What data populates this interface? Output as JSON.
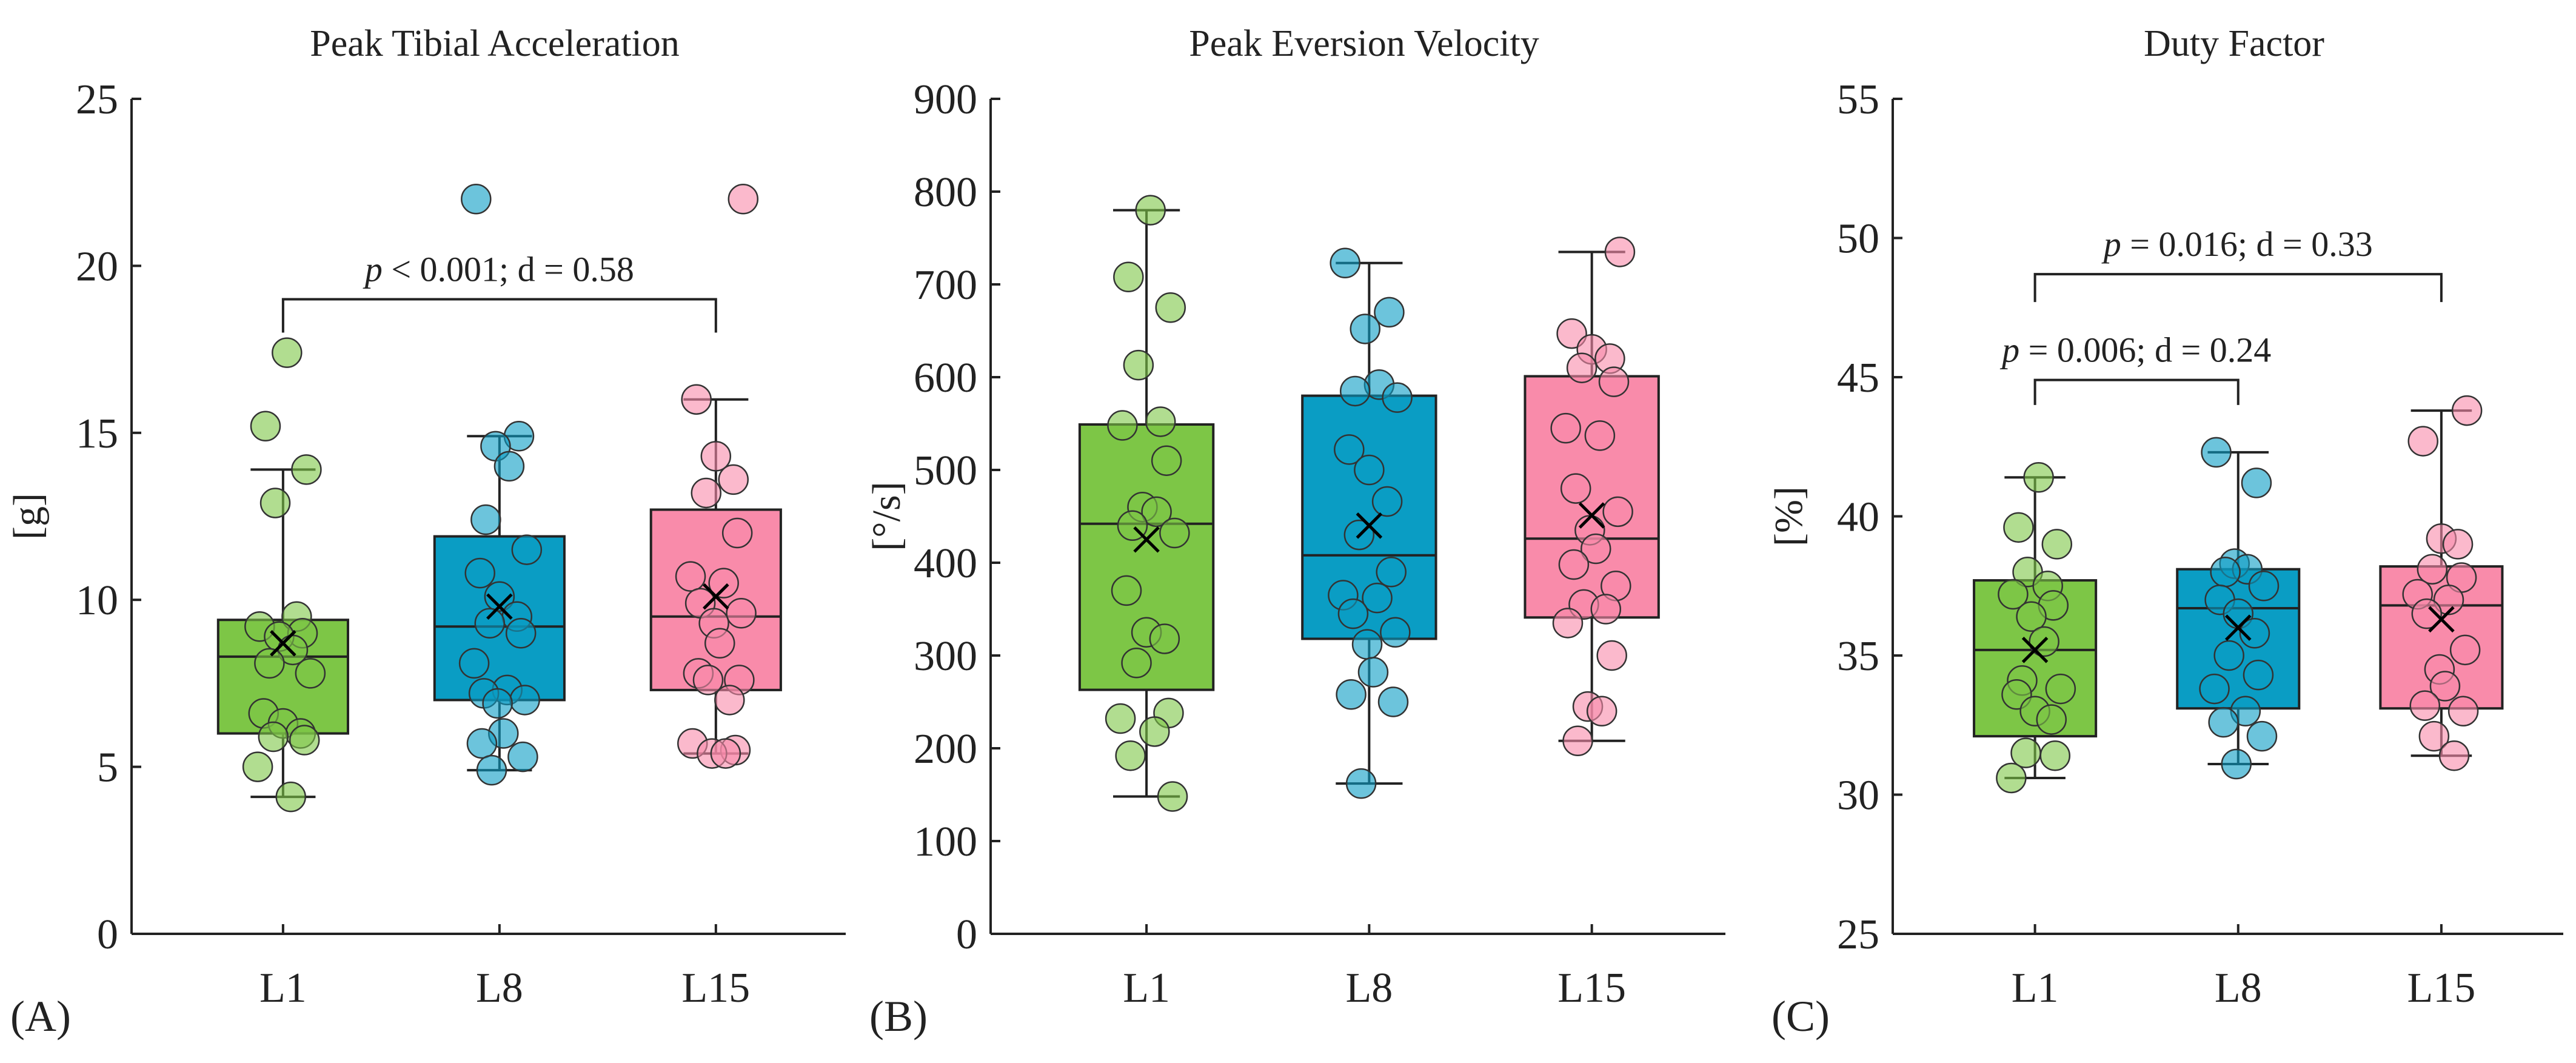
{
  "colors": {
    "L1": "#7DC646",
    "L8": "#0A9DC4",
    "L15": "#F98BAA",
    "axis": "#222222"
  },
  "chart_data": [
    {
      "type": "box",
      "panel_label": "(A)",
      "title": "Peak Tibial Acceleration",
      "ylabel": "[g]",
      "ylim": [
        0,
        25
      ],
      "yticks": [
        0,
        5,
        10,
        15,
        20,
        25
      ],
      "categories": [
        "L1",
        "L8",
        "L15"
      ],
      "series": [
        {
          "name": "L1",
          "whisker_low": 4.1,
          "q1": 6.0,
          "median": 8.3,
          "q3": 9.4,
          "whisker_high": 13.9,
          "mean": 8.7,
          "points": [
            17.4,
            15.2,
            13.9,
            12.9,
            9.5,
            9.2,
            9.0,
            8.9,
            8.5,
            8.1,
            7.8,
            6.6,
            6.3,
            6.0,
            5.9,
            5.8,
            5.0,
            4.1
          ]
        },
        {
          "name": "L8",
          "whisker_low": 4.9,
          "q1": 7.0,
          "median": 9.2,
          "q3": 11.9,
          "whisker_high": 14.9,
          "mean": 9.8,
          "points": [
            22.0,
            14.9,
            14.6,
            14.0,
            12.4,
            11.5,
            10.8,
            10.1,
            9.5,
            9.3,
            9.0,
            8.1,
            7.3,
            7.2,
            7.0,
            6.9,
            6.0,
            5.7,
            5.3,
            4.9
          ]
        },
        {
          "name": "L15",
          "whisker_low": 5.4,
          "q1": 7.3,
          "median": 9.5,
          "q3": 12.7,
          "whisker_high": 16.0,
          "mean": 10.1,
          "points": [
            22.0,
            16.0,
            14.3,
            13.6,
            13.2,
            12.0,
            10.7,
            10.5,
            9.9,
            9.6,
            9.3,
            8.7,
            7.8,
            7.6,
            7.6,
            7.0,
            5.7,
            5.5,
            5.4,
            5.4
          ]
        }
      ],
      "annotations": [
        {
          "from": "L1",
          "to": "L15",
          "top": 19.0,
          "leg": 18.0,
          "p_symbol": "p",
          "text": " < 0.001; d = 0.58"
        }
      ]
    },
    {
      "type": "box",
      "panel_label": "(B)",
      "title": "Peak Eversion Velocity",
      "ylabel": "[°/s]",
      "ylim": [
        0,
        900
      ],
      "yticks": [
        0,
        100,
        200,
        300,
        400,
        500,
        600,
        700,
        800,
        900
      ],
      "categories": [
        "L1",
        "L8",
        "L15"
      ],
      "series": [
        {
          "name": "L1",
          "whisker_low": 148,
          "q1": 263,
          "median": 442,
          "q3": 549,
          "whisker_high": 780,
          "mean": 425,
          "points": [
            780,
            708,
            675,
            613,
            552,
            548,
            510,
            460,
            455,
            440,
            432,
            370,
            325,
            318,
            292,
            238,
            232,
            218,
            192,
            148
          ]
        },
        {
          "name": "L8",
          "whisker_low": 162,
          "q1": 318,
          "median": 408,
          "q3": 580,
          "whisker_high": 723,
          "mean": 440,
          "points": [
            723,
            670,
            652,
            592,
            585,
            578,
            522,
            500,
            466,
            430,
            390,
            365,
            362,
            345,
            325,
            312,
            282,
            258,
            250,
            162
          ]
        },
        {
          "name": "L15",
          "whisker_low": 208,
          "q1": 341,
          "median": 426,
          "q3": 601,
          "whisker_high": 735,
          "mean": 451,
          "points": [
            735,
            647,
            630,
            620,
            610,
            595,
            545,
            537,
            480,
            455,
            435,
            415,
            398,
            375,
            355,
            350,
            335,
            300,
            245,
            240,
            208
          ]
        }
      ],
      "annotations": []
    },
    {
      "type": "box",
      "panel_label": "(C)",
      "title": "Duty Factor",
      "ylabel": "[%]",
      "ylim": [
        25,
        55
      ],
      "yticks": [
        25,
        30,
        35,
        40,
        45,
        50,
        55
      ],
      "categories": [
        "L1",
        "L8",
        "L15"
      ],
      "series": [
        {
          "name": "L1",
          "whisker_low": 30.6,
          "q1": 32.1,
          "median": 35.2,
          "q3": 37.7,
          "whisker_high": 41.4,
          "mean": 35.2,
          "points": [
            41.4,
            39.6,
            39.0,
            38.0,
            37.5,
            37.2,
            36.8,
            36.4,
            35.5,
            34.1,
            33.8,
            33.6,
            33.0,
            32.7,
            31.5,
            31.4,
            30.6
          ]
        },
        {
          "name": "L8",
          "whisker_low": 31.1,
          "q1": 33.1,
          "median": 36.7,
          "q3": 38.1,
          "whisker_high": 42.3,
          "mean": 36.0,
          "points": [
            42.3,
            41.2,
            38.3,
            38.1,
            38.0,
            37.5,
            37.0,
            36.5,
            35.8,
            35.0,
            34.3,
            33.8,
            33.0,
            32.6,
            32.1,
            31.1
          ]
        },
        {
          "name": "L15",
          "whisker_low": 31.4,
          "q1": 33.1,
          "median": 36.8,
          "q3": 38.2,
          "whisker_high": 43.8,
          "mean": 36.3,
          "points": [
            43.8,
            42.7,
            39.2,
            39.0,
            38.1,
            37.8,
            37.2,
            37.0,
            36.5,
            35.2,
            34.5,
            33.9,
            33.2,
            33.0,
            32.1,
            31.4
          ]
        }
      ],
      "annotations": [
        {
          "from": "L1",
          "to": "L15",
          "top": 48.7,
          "leg": 47.7,
          "p_symbol": "p",
          "text": " = 0.016; d = 0.33"
        },
        {
          "from": "L1",
          "to": "L8",
          "top": 44.9,
          "leg": 44.0,
          "p_symbol": "p",
          "text": " = 0.006; d = 0.24"
        }
      ]
    }
  ]
}
